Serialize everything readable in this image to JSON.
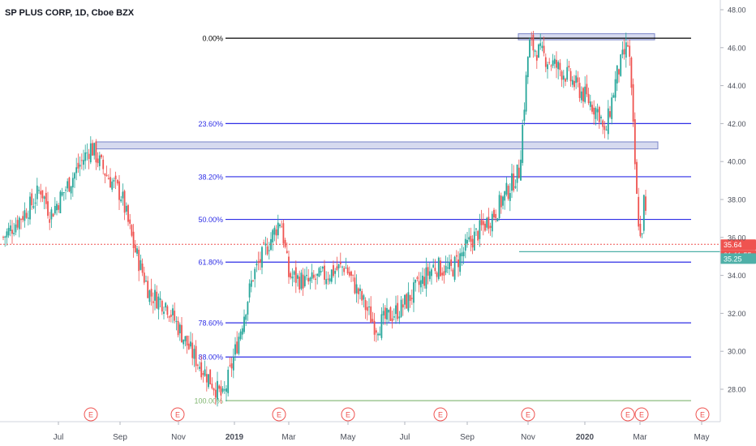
{
  "header": {
    "title": "SP PLUS CORP, 1D, Cboe BZX"
  },
  "colors": {
    "up": "#26a69a",
    "down": "#ef5350",
    "fib_line": "#2e2ee6",
    "fib_top": "#000000",
    "fib_bottom": "#7fb56f",
    "price_line": "#ef5350",
    "zone_fill": "#c5cbe8",
    "zone_stroke": "#7a86c9",
    "earnings": "#ef5350",
    "support": "#4fb0a8"
  },
  "chart_data": {
    "type": "candlestick",
    "title": "SP PLUS CORP, 1D, Cboe BZX",
    "ylim": [
      26.7,
      48.4
    ],
    "y_ticks": [
      "28.00",
      "30.00",
      "32.00",
      "34.00",
      "36.00",
      "38.00",
      "40.00",
      "42.00",
      "44.00",
      "46.00",
      "48.00"
    ],
    "x_ticks": [
      "Jul",
      "Sep",
      "Nov",
      "2019",
      "Mar",
      "May",
      "Jul",
      "Sep",
      "Nov",
      "2020",
      "Mar",
      "May"
    ],
    "fib_levels": [
      {
        "label": "0.00%",
        "price": 46.5,
        "kind": "top"
      },
      {
        "label": "23.60%",
        "price": 42.0,
        "kind": "mid"
      },
      {
        "label": "38.20%",
        "price": 39.2,
        "kind": "mid"
      },
      {
        "label": "50.00%",
        "price": 36.95,
        "kind": "mid"
      },
      {
        "label": "61.80%",
        "price": 34.7,
        "kind": "mid"
      },
      {
        "label": "78.60%",
        "price": 31.5,
        "kind": "mid"
      },
      {
        "label": "88.00%",
        "price": 29.7,
        "kind": "mid"
      },
      {
        "label": "100.00%",
        "price": 27.4,
        "kind": "bottom"
      }
    ],
    "zones": [
      {
        "from_date": "Aug '18",
        "to_date": "Mar '20",
        "price_low": 40.75,
        "price_high": 40.95
      },
      {
        "from_date": "Nov '19",
        "to_date": "Mar '20",
        "price_low": 46.5,
        "price_high": 46.65
      }
    ],
    "current_price": {
      "value": "35.64",
      "timer": "01:11:55",
      "price": 35.64
    },
    "support_level": {
      "value": "35.25",
      "price": 35.25
    },
    "earnings_markers": [
      "E",
      "E",
      "E",
      "E",
      "E",
      "E",
      "E",
      "E",
      "E"
    ],
    "price_anchors": [
      {
        "date": "Jun '18",
        "price": 36.0
      },
      {
        "date": "Jul '18",
        "price": 37.8
      },
      {
        "date": "Jul '18",
        "price": 38.6
      },
      {
        "date": "Aug '18",
        "price": 37.2
      },
      {
        "date": "Aug '18",
        "price": 40.8
      },
      {
        "date": "Sep '18",
        "price": 39.4
      },
      {
        "date": "Sep '18",
        "price": 38.2
      },
      {
        "date": "Oct '18",
        "price": 35.5
      },
      {
        "date": "Oct '18",
        "price": 33.0
      },
      {
        "date": "Nov '18",
        "price": 32.5
      },
      {
        "date": "Dec '18",
        "price": 30.0
      },
      {
        "date": "Dec '18",
        "price": 27.5
      },
      {
        "date": "Jan '19",
        "price": 30.0
      },
      {
        "date": "Feb '19",
        "price": 34.0
      },
      {
        "date": "Mar '19",
        "price": 37.0
      },
      {
        "date": "Mar '19",
        "price": 34.0
      },
      {
        "date": "Apr '19",
        "price": 33.6
      },
      {
        "date": "May '19",
        "price": 34.5
      },
      {
        "date": "Jun '19",
        "price": 31.3
      },
      {
        "date": "Jul '19",
        "price": 32.3
      },
      {
        "date": "Aug '19",
        "price": 34.5
      },
      {
        "date": "Aug '19",
        "price": 34.2
      },
      {
        "date": "Sep '19",
        "price": 35.8
      },
      {
        "date": "Oct '19",
        "price": 37.3
      },
      {
        "date": "Oct '19",
        "price": 39.5
      },
      {
        "date": "Nov '19",
        "price": 46.2
      },
      {
        "date": "Dec '19",
        "price": 44.5
      },
      {
        "date": "Jan '20",
        "price": 42.5
      },
      {
        "date": "Feb '20",
        "price": 41.2
      },
      {
        "date": "Feb '20",
        "price": 44.5
      },
      {
        "date": "Feb '20",
        "price": 46.3
      },
      {
        "date": "Mar '20",
        "price": 38.0
      },
      {
        "date": "Mar '20",
        "price": 35.6
      },
      {
        "date": "Mar '20",
        "price": 38.6
      },
      {
        "date": "Mar '20",
        "price": 35.64
      }
    ]
  }
}
